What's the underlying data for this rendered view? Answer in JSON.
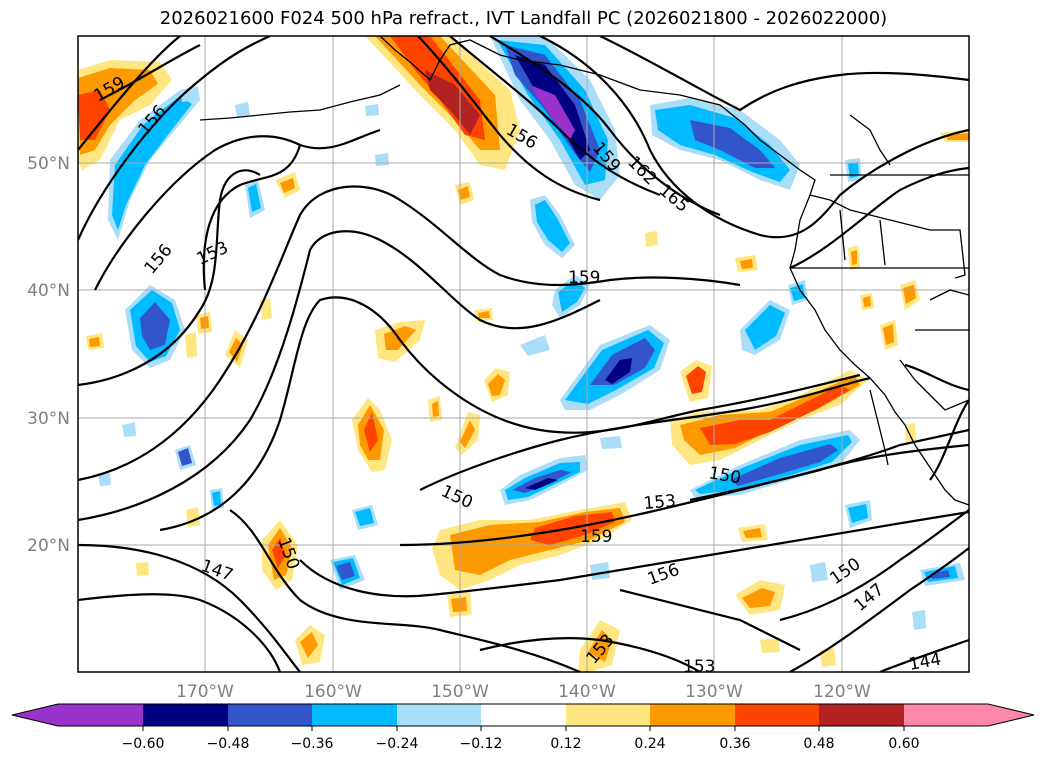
{
  "title": "2026021600 F024 500 hPa refract., IVT Landfall PC (2026021800 - 2026022000)",
  "lat_labels": [
    "50°N",
    "40°N",
    "30°N",
    "20°N"
  ],
  "lon_labels": [
    "170°W",
    "160°W",
    "150°W",
    "140°W",
    "130°W",
    "120°W"
  ],
  "contour_labels": [
    "159",
    "156",
    "156",
    "153",
    "156",
    "159",
    "162",
    "165",
    "159",
    "150",
    "150",
    "153",
    "159",
    "156",
    "150",
    "147",
    "147",
    "153",
    "153",
    "150",
    "144"
  ],
  "colorbar": {
    "ticks": [
      "−0.60",
      "−0.48",
      "−0.36",
      "−0.24",
      "−0.12",
      "0.12",
      "0.24",
      "0.36",
      "0.48",
      "0.60"
    ],
    "colors": [
      "#9933cc",
      "#000080",
      "#3355cc",
      "#00bbff",
      "#aaddf8",
      "#ffffff",
      "#ffe680",
      "#ff9900",
      "#ff4400",
      "#b22222",
      "#ff88aa"
    ]
  }
}
